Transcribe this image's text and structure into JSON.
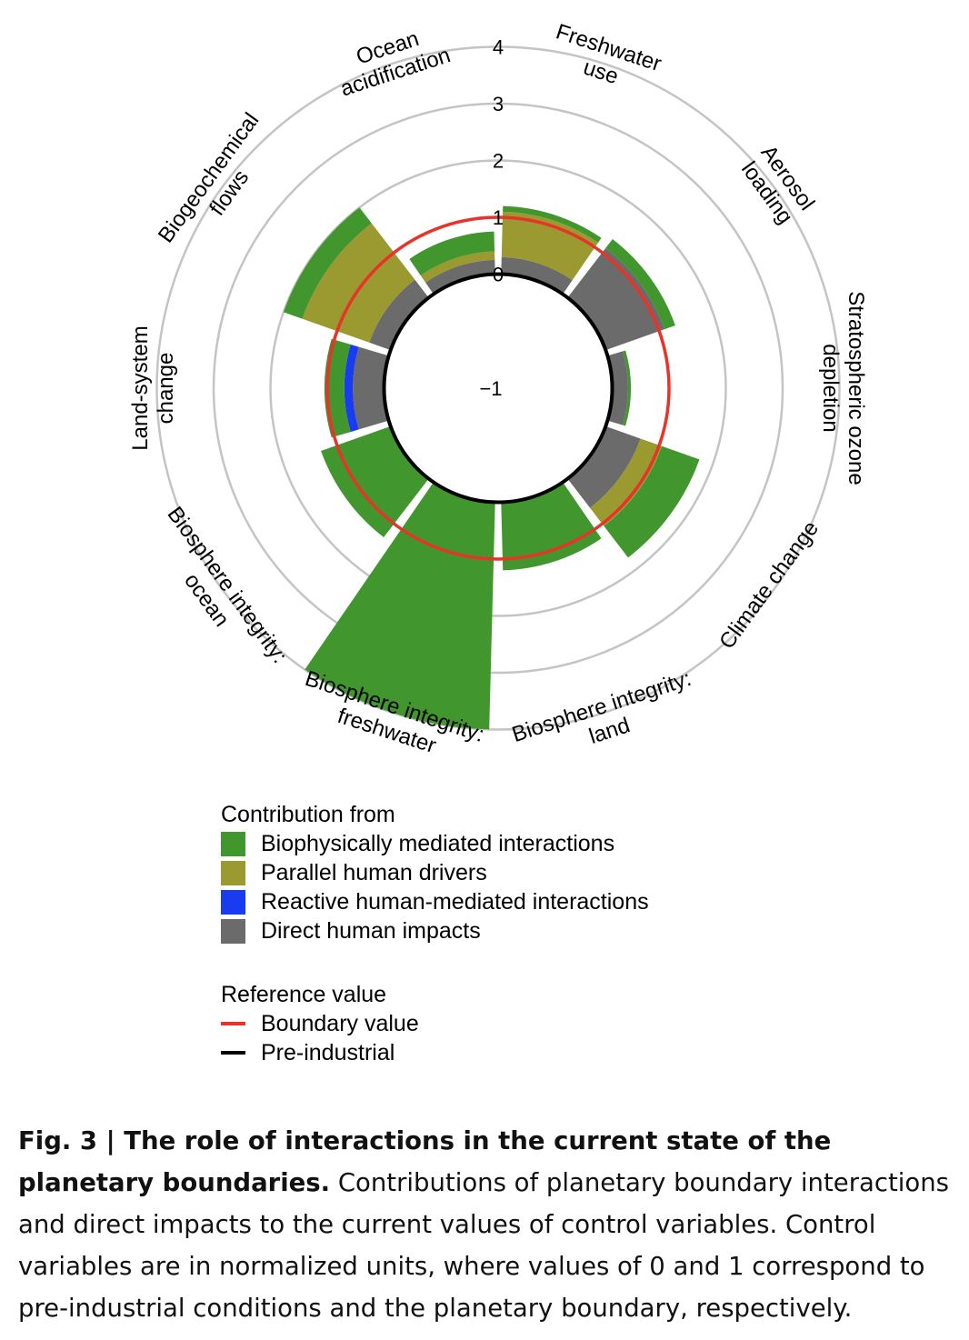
{
  "chart_data": {
    "type": "polar-stacked-bar",
    "radial_ticks": [
      "−1",
      "0",
      "1",
      "2",
      "3",
      "4"
    ],
    "radial_ticks_values": [
      -1,
      0,
      1,
      2,
      3,
      4
    ],
    "rlim": [
      -1,
      4
    ],
    "categories": [
      "Climate change",
      "Biosphere integrity: land",
      "Biosphere integrity: freshwater",
      "Biosphere integrity: ocean",
      "Land-system change",
      "Biogeochemical flows",
      "Ocean acidification",
      "Freshwater use",
      "Aerosol loading",
      "Stratospheric ozone depletion"
    ],
    "category_labels": [
      [
        "Climate change"
      ],
      [
        "Biosphere integrity:",
        "land"
      ],
      [
        "Biosphere integrity:",
        "freshwater"
      ],
      [
        "Biosphere integrity:",
        "ocean"
      ],
      [
        "Land-system",
        "change"
      ],
      [
        "Biogeochemical",
        "flows"
      ],
      [
        "Ocean",
        "acidification"
      ],
      [
        "Freshwater",
        "use"
      ],
      [
        "Aerosol",
        "loading"
      ],
      [
        "Stratospheric ozone",
        "depletion"
      ]
    ],
    "series": [
      {
        "name": "Direct human impacts",
        "color": "#6b6b6b",
        "values": [
          0.65,
          0.0,
          0.0,
          0.0,
          0.55,
          0.4,
          0.25,
          0.3,
          1.1,
          0.28
        ]
      },
      {
        "name": "Parallel human drivers",
        "color": "#9a9a30",
        "values": [
          0.4,
          0.0,
          0.0,
          0.0,
          0.0,
          1.25,
          0.15,
          0.8,
          0.0,
          0.0
        ]
      },
      {
        "name": "Reactive human-mediated interactions",
        "color": "#1a3cf0",
        "values": [
          0.0,
          0.0,
          0.0,
          0.0,
          0.15,
          0.0,
          0.0,
          0.0,
          0.0,
          0.0
        ]
      },
      {
        "name": "Biophysically mediated interactions",
        "color": "#42962e",
        "values": [
          0.7,
          1.2,
          4.0,
          1.3,
          0.35,
          0.35,
          0.35,
          0.1,
          0.2,
          0.05
        ]
      }
    ],
    "boundary_value": 1,
    "pre_industrial": 0,
    "grid": true
  },
  "legend": {
    "contribution_title": "Contribution from",
    "contribution_items": [
      {
        "label": "Biophysically mediated interactions",
        "color": "#42962e"
      },
      {
        "label": "Parallel human drivers",
        "color": "#9a9a30"
      },
      {
        "label": "Reactive human-mediated interactions",
        "color": "#1a3cf0"
      },
      {
        "label": "Direct human impacts",
        "color": "#6b6b6b"
      }
    ],
    "reference_title": "Reference value",
    "reference_items": [
      {
        "label": "Boundary value",
        "color": "#e8332a"
      },
      {
        "label": "Pre-industrial",
        "color": "#000000"
      }
    ]
  },
  "caption": {
    "bold": "Fig. 3 | The role of interactions in the current state of the planetary boundaries.",
    "text": " Contributions of planetary boundary interactions and direct impacts to the current values of control variables. Control variables are in normalized units, where values of 0 and 1 correspond to pre-industrial conditions and the planetary boundary, respectively."
  }
}
